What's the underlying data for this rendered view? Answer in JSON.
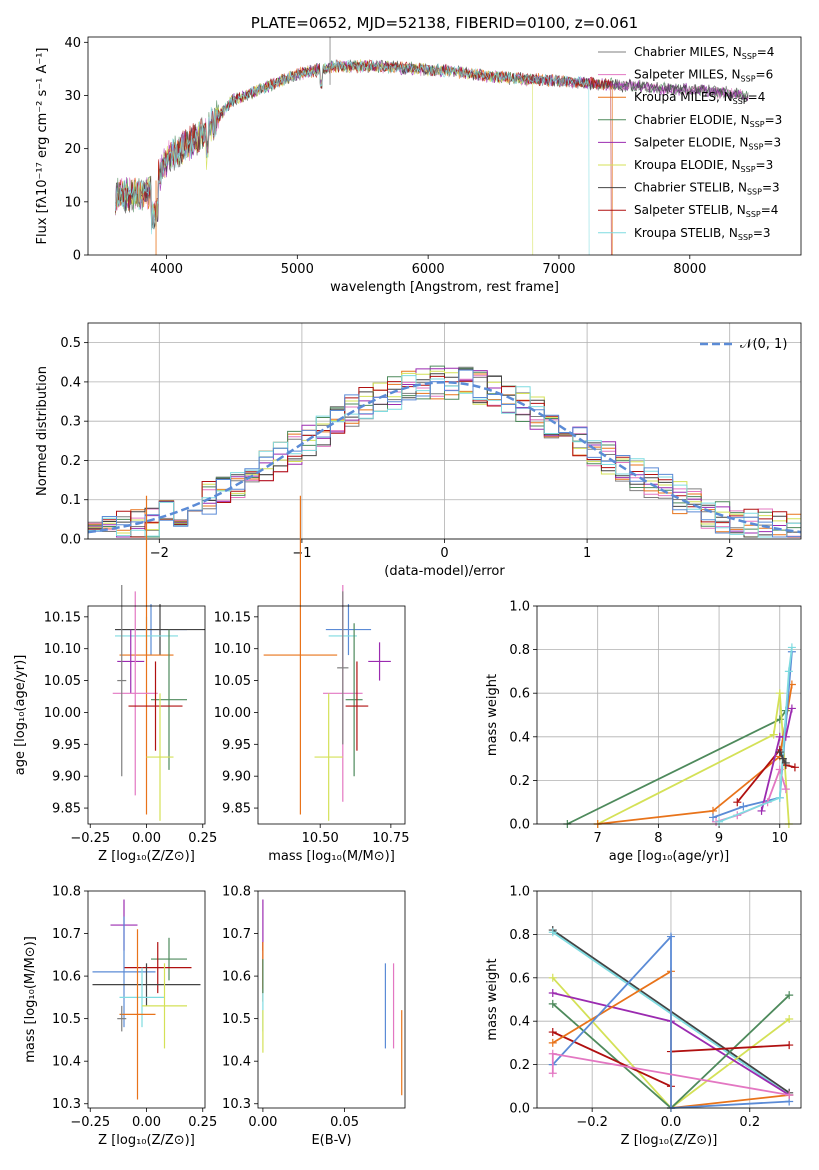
{
  "colors": {
    "chabrier_miles": "#7f7f7f",
    "salpeter_miles": "#e377c2",
    "kroupa_miles": "#e8731a",
    "chabrier_elodie": "#4e8a5c",
    "salpeter_elodie": "#9b2bb0",
    "kroupa_elodie": "#d4e157",
    "chabrier_stelib": "#444444",
    "salpeter_stelib": "#b01010",
    "kroupa_stelib": "#7fdbe0",
    "blue": "#5b8bd6"
  },
  "chart_data": [
    {
      "id": "spectrum",
      "type": "line",
      "title": "PLATE=0652, MJD=52138, FIBERID=0100, z=0.061",
      "xlabel": "wavelength [Angstrom, rest frame]",
      "ylabel": "Flux [fλ10⁻¹⁷ erg cm⁻² s⁻¹ A⁻¹]",
      "xlim": [
        3400,
        8850
      ],
      "ylim": [
        0,
        41
      ],
      "xticks": [
        "4000",
        "5000",
        "6000",
        "7000",
        "8000"
      ],
      "yticks": [
        "0",
        "10",
        "20",
        "30",
        "40"
      ],
      "legend_position": "top-right",
      "continuum_x": [
        3600,
        3900,
        4000,
        4300,
        4500,
        4800,
        5000,
        5300,
        5600,
        5900,
        6200,
        6500,
        6800,
        7100,
        7400,
        7700,
        8000,
        8300,
        8500
      ],
      "continuum_y": [
        11,
        12,
        18,
        23,
        29,
        32,
        34,
        35.5,
        35.5,
        35,
        34.5,
        33.5,
        33,
        32.5,
        32,
        31.5,
        31,
        30.5,
        29.5
      ],
      "series": [
        {
          "name": "Chabrier MILES, N_SSP=4",
          "color_key": "chabrier_miles"
        },
        {
          "name": "Salpeter MILES, N_SSP=6",
          "color_key": "salpeter_miles"
        },
        {
          "name": "Kroupa MILES, N_SSP=4",
          "color_key": "kroupa_miles"
        },
        {
          "name": "Chabrier ELODIE, N_SSP=3",
          "color_key": "chabrier_elodie"
        },
        {
          "name": "Salpeter ELODIE, N_SSP=3",
          "color_key": "salpeter_elodie"
        },
        {
          "name": "Kroupa ELODIE, N_SSP=3",
          "color_key": "kroupa_elodie"
        },
        {
          "name": "Chabrier STELIB, N_SSP=3",
          "color_key": "chabrier_stelib"
        },
        {
          "name": "Salpeter STELIB, N_SSP=4",
          "color_key": "salpeter_stelib"
        },
        {
          "name": "Kroupa STELIB, N_SSP=3",
          "color_key": "kroupa_stelib"
        }
      ],
      "legend_labels": [
        {
          "pre": "Chabrier MILES, N",
          "sub": "SSP",
          "post": "=4"
        },
        {
          "pre": "Salpeter MILES, N",
          "sub": "SSP",
          "post": "=6"
        },
        {
          "pre": "Kroupa MILES, N",
          "sub": "SSP",
          "post": "=4"
        },
        {
          "pre": "Chabrier ELODIE, N",
          "sub": "SSP",
          "post": "=3"
        },
        {
          "pre": "Salpeter ELODIE, N",
          "sub": "SSP",
          "post": "=3"
        },
        {
          "pre": "Kroupa ELODIE, N",
          "sub": "SSP",
          "post": "=3"
        },
        {
          "pre": "Chabrier STELIB, N",
          "sub": "SSP",
          "post": "=3"
        },
        {
          "pre": "Salpeter STELIB, N",
          "sub": "SSP",
          "post": "=4"
        },
        {
          "pre": "Kroupa STELIB, N",
          "sub": "SSP",
          "post": "=3"
        }
      ]
    },
    {
      "id": "residuals",
      "type": "histogram",
      "xlabel": "(data-model)/error",
      "ylabel": "Normed distribution",
      "xlim": [
        -2.5,
        2.5
      ],
      "ylim": [
        0,
        0.55
      ],
      "xticks": [
        "−2",
        "−1",
        "0",
        "1",
        "2"
      ],
      "yticks": [
        "0.0",
        "0.1",
        "0.2",
        "0.3",
        "0.4",
        "0.5"
      ],
      "grid": true,
      "legend_position": "top-right",
      "reference": {
        "name": "𝒩(0, 1)",
        "color_key": "blue",
        "style": "dashed"
      }
    },
    {
      "id": "age_vs_Z",
      "type": "errorbar",
      "xlabel": "Z [log₁₀(Z/Z⊙)]",
      "ylabel": "age  [log₁₀(age/yr)]",
      "xlim": [
        -0.26,
        0.26
      ],
      "ylim": [
        9.825,
        10.167
      ],
      "xticks": [
        "−0.25",
        "0.00",
        "0.25"
      ],
      "yticks": [
        "9.85",
        "9.90",
        "9.95",
        "10.00",
        "10.05",
        "10.10",
        "10.15"
      ],
      "points": [
        {
          "x": 0.02,
          "y": 10.13,
          "xerr": 0.16,
          "yerr": 0.04,
          "color_key": "blue"
        },
        {
          "x": 0.06,
          "y": 10.13,
          "xerr": 0.2,
          "yerr": 0.04,
          "color_key": "chabrier_stelib"
        },
        {
          "x": 0.0,
          "y": 10.12,
          "xerr": 0.14,
          "yerr": 0.03,
          "color_key": "kroupa_stelib"
        },
        {
          "x": 0.0,
          "y": 10.09,
          "xerr": 0.12,
          "yerr": 0.25,
          "color_key": "kroupa_miles"
        },
        {
          "x": -0.07,
          "y": 10.08,
          "xerr": 0.06,
          "yerr": 0.05,
          "color_key": "salpeter_elodie"
        },
        {
          "x": -0.05,
          "y": 10.03,
          "xerr": 0.1,
          "yerr": 0.16,
          "color_key": "salpeter_miles"
        },
        {
          "x": 0.1,
          "y": 10.02,
          "xerr": 0.08,
          "yerr": 0.11,
          "color_key": "chabrier_elodie"
        },
        {
          "x": 0.04,
          "y": 10.01,
          "xerr": 0.12,
          "yerr": 0.07,
          "color_key": "salpeter_stelib"
        },
        {
          "x": 0.06,
          "y": 9.93,
          "xerr": 0.06,
          "yerr": 0.1,
          "color_key": "kroupa_elodie"
        },
        {
          "x": -0.11,
          "y": 10.05,
          "xerr": 0.02,
          "yerr": 0.15,
          "color_key": "chabrier_miles"
        }
      ]
    },
    {
      "id": "age_vs_mass",
      "type": "errorbar",
      "xlabel": "mass [log₁₀(M/M⊙)]",
      "ylabel": "",
      "xlim": [
        10.28,
        10.8
      ],
      "ylim": [
        9.825,
        10.167
      ],
      "xticks": [
        "10.50",
        "10.75"
      ],
      "yticks": [
        "9.85",
        "9.90",
        "9.95",
        "10.00",
        "10.05",
        "10.10",
        "10.15"
      ],
      "points": [
        {
          "x": 10.6,
          "y": 10.13,
          "xerr": 0.08,
          "yerr": 0.04,
          "color_key": "blue"
        },
        {
          "x": 10.58,
          "y": 10.12,
          "xerr": 0.05,
          "yerr": 0.04,
          "color_key": "kroupa_stelib"
        },
        {
          "x": 10.71,
          "y": 10.08,
          "xerr": 0.04,
          "yerr": 0.03,
          "color_key": "salpeter_elodie"
        },
        {
          "x": 10.43,
          "y": 10.09,
          "xerr": 0.13,
          "yerr": 0.25,
          "color_key": "kroupa_miles"
        },
        {
          "x": 10.58,
          "y": 10.03,
          "xerr": 0.07,
          "yerr": 0.17,
          "color_key": "salpeter_miles"
        },
        {
          "x": 10.62,
          "y": 10.02,
          "xerr": 0.03,
          "yerr": 0.12,
          "color_key": "chabrier_elodie"
        },
        {
          "x": 10.63,
          "y": 10.01,
          "xerr": 0.04,
          "yerr": 0.07,
          "color_key": "salpeter_stelib"
        },
        {
          "x": 10.53,
          "y": 9.93,
          "xerr": 0.05,
          "yerr": 0.1,
          "color_key": "kroupa_elodie"
        },
        {
          "x": 10.58,
          "y": 10.07,
          "xerr": 0.02,
          "yerr": 0.12,
          "color_key": "chabrier_miles"
        }
      ]
    },
    {
      "id": "weight_vs_age",
      "type": "line",
      "xlabel": "age  [log₁₀(age/yr)]",
      "ylabel": "mass weight",
      "xlim": [
        6.0,
        10.35
      ],
      "ylim": [
        0,
        1.0
      ],
      "xticks": [
        "7",
        "8",
        "9",
        "10"
      ],
      "yticks": [
        "0.0",
        "0.2",
        "0.4",
        "0.6",
        "0.8",
        "1.0"
      ],
      "grid": true,
      "series": [
        {
          "color_key": "chabrier_elodie",
          "x": [
            6.5,
            10.0,
            10.1
          ],
          "y": [
            0.0,
            0.48,
            0.52
          ]
        },
        {
          "color_key": "kroupa_elodie",
          "x": [
            7.0,
            9.9,
            10.0,
            10.15
          ],
          "y": [
            0.0,
            0.41,
            0.6,
            0.0
          ]
        },
        {
          "color_key": "kroupa_miles",
          "x": [
            7.0,
            8.9,
            10.0,
            10.2
          ],
          "y": [
            0.0,
            0.06,
            0.31,
            0.64
          ]
        },
        {
          "color_key": "blue",
          "x": [
            8.9,
            9.4,
            10.0,
            10.2
          ],
          "y": [
            0.03,
            0.08,
            0.12,
            0.79
          ]
        },
        {
          "color_key": "salpeter_stelib",
          "x": [
            9.3,
            10.0,
            10.1,
            10.25
          ],
          "y": [
            0.1,
            0.34,
            0.27,
            0.26
          ]
        },
        {
          "color_key": "salpeter_elodie",
          "x": [
            9.7,
            10.0,
            10.1,
            10.2
          ],
          "y": [
            0.06,
            0.4,
            0.4,
            0.53
          ]
        },
        {
          "color_key": "salpeter_miles",
          "x": [
            8.95,
            9.3,
            9.8,
            10.0,
            10.1
          ],
          "y": [
            0.01,
            0.04,
            0.1,
            0.25,
            0.16
          ]
        },
        {
          "color_key": "kroupa_stelib",
          "x": [
            9.0,
            10.0,
            10.15,
            10.2
          ],
          "y": [
            0.01,
            0.12,
            0.7,
            0.81
          ]
        },
        {
          "color_key": "chabrier_stelib",
          "x": [
            10.0,
            10.05,
            10.1
          ],
          "y": [
            0.33,
            0.3,
            0.28
          ]
        }
      ]
    },
    {
      "id": "mass_vs_Z",
      "type": "errorbar",
      "xlabel": "Z [log₁₀(Z/Z⊙)]",
      "ylabel": "mass [log₁₀(M/M⊙)]",
      "xlim": [
        -0.26,
        0.26
      ],
      "ylim": [
        10.29,
        10.8
      ],
      "xticks": [
        "−0.25",
        "0.00",
        "0.25"
      ],
      "yticks": [
        "10.3",
        "10.4",
        "10.5",
        "10.6",
        "10.7",
        "10.8"
      ],
      "points": [
        {
          "x": -0.1,
          "y": 10.72,
          "xerr": 0.06,
          "yerr": 0.06,
          "color_key": "salpeter_elodie"
        },
        {
          "x": 0.1,
          "y": 10.64,
          "xerr": 0.08,
          "yerr": 0.05,
          "color_key": "chabrier_elodie"
        },
        {
          "x": 0.05,
          "y": 10.62,
          "xerr": 0.15,
          "yerr": 0.06,
          "color_key": "salpeter_stelib"
        },
        {
          "x": -0.1,
          "y": 10.61,
          "xerr": 0.14,
          "yerr": 0.13,
          "color_key": "blue"
        },
        {
          "x": 0.0,
          "y": 10.58,
          "xerr": 0.24,
          "yerr": 0.05,
          "color_key": "chabrier_stelib"
        },
        {
          "x": -0.02,
          "y": 10.55,
          "xerr": 0.1,
          "yerr": 0.07,
          "color_key": "kroupa_stelib"
        },
        {
          "x": 0.08,
          "y": 10.53,
          "xerr": 0.1,
          "yerr": 0.1,
          "color_key": "kroupa_elodie"
        },
        {
          "x": -0.04,
          "y": 10.51,
          "xerr": 0.08,
          "yerr": 0.2,
          "color_key": "kroupa_miles"
        },
        {
          "x": -0.11,
          "y": 10.5,
          "xerr": 0.02,
          "yerr": 0.03,
          "color_key": "chabrier_miles"
        }
      ]
    },
    {
      "id": "mass_vs_ebv",
      "type": "errorbar",
      "xlabel": "E(B-V)",
      "ylabel": "",
      "xlim": [
        -0.003,
        0.087
      ],
      "ylim": [
        10.29,
        10.8
      ],
      "xticks": [
        "0.00",
        "0.05"
      ],
      "yticks": [
        "10.3",
        "10.4",
        "10.5",
        "10.6",
        "10.7",
        "10.8"
      ],
      "points": [
        {
          "x": 0.0,
          "y": 10.72,
          "xerr": 0.0,
          "yerr": 0.06,
          "color_key": "salpeter_elodie"
        },
        {
          "x": 0.0,
          "y": 10.62,
          "xerr": 0.0,
          "yerr": 0.06,
          "color_key": "salpeter_stelib"
        },
        {
          "x": 0.0,
          "y": 10.61,
          "xerr": 0.0,
          "yerr": 0.07,
          "color_key": "kroupa_miles"
        },
        {
          "x": 0.0,
          "y": 10.52,
          "xerr": 0.0,
          "yerr": 0.05,
          "color_key": "kroupa_stelib"
        },
        {
          "x": 0.0,
          "y": 10.47,
          "xerr": 0.0,
          "yerr": 0.05,
          "color_key": "kroupa_elodie"
        },
        {
          "x": 0.0,
          "y": 10.6,
          "xerr": 0.0,
          "yerr": 0.04,
          "color_key": "chabrier_elodie"
        },
        {
          "x": 0.075,
          "y": 10.53,
          "xerr": 0.0,
          "yerr": 0.1,
          "color_key": "blue"
        },
        {
          "x": 0.08,
          "y": 10.53,
          "xerr": 0.0,
          "yerr": 0.1,
          "color_key": "salpeter_miles"
        },
        {
          "x": 0.085,
          "y": 10.42,
          "xerr": 0.0,
          "yerr": 0.1,
          "color_key": "kroupa_miles"
        }
      ]
    },
    {
      "id": "weight_vs_Z",
      "type": "line",
      "xlabel": "Z [log₁₀(Z/Z⊙)]",
      "ylabel": "mass weight",
      "xlim": [
        -0.34,
        0.33
      ],
      "ylim": [
        0,
        1.0
      ],
      "xticks": [
        "−0.2",
        "0.0",
        "0.2"
      ],
      "yticks": [
        "0.0",
        "0.2",
        "0.4",
        "0.6",
        "0.8",
        "1.0"
      ],
      "grid": true,
      "series": [
        {
          "color_key": "chabrier_stelib",
          "x": [
            -0.3,
            0.3
          ],
          "y": [
            0.82,
            0.07
          ]
        },
        {
          "color_key": "kroupa_stelib",
          "x": [
            -0.3,
            0.3
          ],
          "y": [
            0.81,
            0.06
          ]
        },
        {
          "color_key": "kroupa_elodie",
          "x": [
            -0.3,
            0.0,
            0.3
          ],
          "y": [
            0.6,
            0.0,
            0.41
          ]
        },
        {
          "color_key": "salpeter_elodie",
          "x": [
            -0.3,
            0.0,
            0.3
          ],
          "y": [
            0.53,
            0.4,
            0.06
          ]
        },
        {
          "color_key": "chabrier_elodie",
          "x": [
            -0.3,
            0.0,
            0.3
          ],
          "y": [
            0.48,
            0.0,
            0.52
          ]
        },
        {
          "color_key": "salpeter_stelib",
          "x": [
            -0.3,
            0.0,
            0.0,
            0.3
          ],
          "y": [
            0.35,
            0.1,
            0.26,
            0.29
          ]
        },
        {
          "color_key": "kroupa_miles",
          "x": [
            -0.3,
            0.0,
            0.0,
            0.3
          ],
          "y": [
            0.3,
            0.63,
            0.0,
            0.06
          ]
        },
        {
          "color_key": "blue",
          "x": [
            -0.3,
            0.0,
            0.0,
            0.3
          ],
          "y": [
            0.2,
            0.79,
            0.0,
            0.03
          ]
        },
        {
          "color_key": "salpeter_miles",
          "x": [
            -0.3,
            -0.3,
            0.3
          ],
          "y": [
            0.16,
            0.25,
            0.06
          ]
        }
      ]
    }
  ]
}
